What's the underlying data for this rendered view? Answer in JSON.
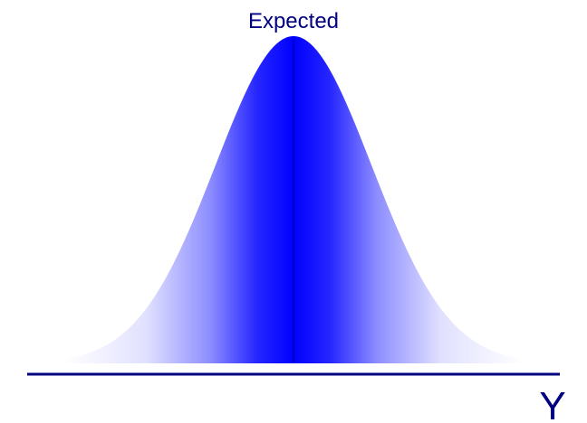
{
  "labels": {
    "peak": "Expected",
    "axis": "Y"
  },
  "colors": {
    "fill": "#0000ff",
    "axis": "#000080",
    "text": "#000080",
    "background": "#ffffff"
  }
}
